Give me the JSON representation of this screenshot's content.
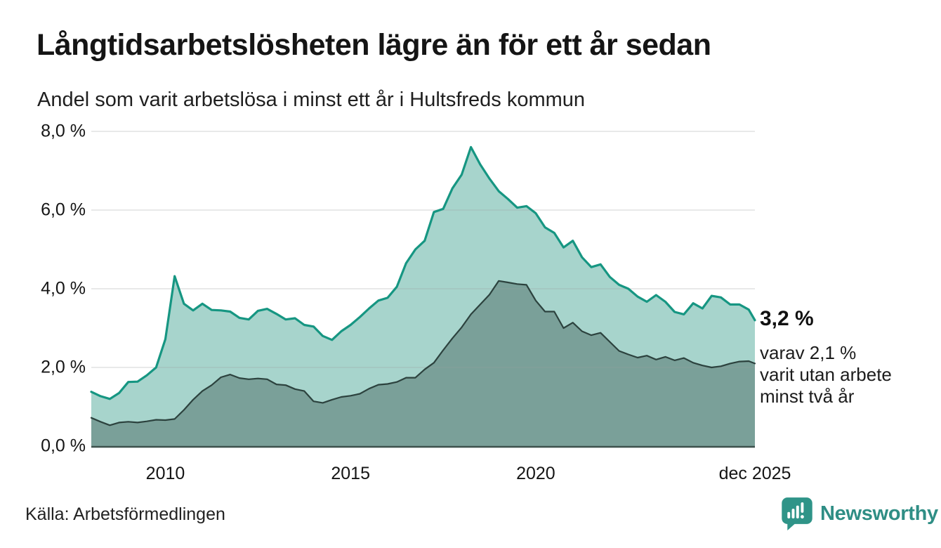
{
  "header": {
    "title": "Långtidsarbetslösheten lägre än för ett år sedan",
    "subtitle": "Andel som varit arbetslösa i minst ett år i Hultsfreds kommun"
  },
  "chart_data": {
    "type": "area",
    "title": "Långtidsarbetslösheten lägre än för ett år sedan",
    "subtitle": "Andel som varit arbetslösa i minst ett år i Hultsfreds kommun",
    "unit": "%",
    "ylim": [
      0,
      8
    ],
    "grid": true,
    "x_start": 2008.0,
    "x_step": 0.25,
    "x_end": 2025.917,
    "y_ticks": [
      {
        "label": "8,0 %",
        "value": 8
      },
      {
        "label": "6,0 %",
        "value": 6
      },
      {
        "label": "4,0 %",
        "value": 4
      },
      {
        "label": "2,0 %",
        "value": 2
      },
      {
        "label": "0,0 %",
        "value": 0
      }
    ],
    "x_ticks": [
      {
        "label": "2010",
        "t": 2010.0
      },
      {
        "label": "2015",
        "t": 2015.0
      },
      {
        "label": "2020",
        "t": 2020.0
      },
      {
        "label": "dec 2025",
        "t": 2025.917
      }
    ],
    "series": [
      {
        "name": "arbetslösa minst ett år",
        "line_color": "#169682",
        "fill_color": "#a7d4cc",
        "line_width": 3.2,
        "last_value": 3.2,
        "values": [
          1.38,
          1.27,
          1.2,
          1.35,
          1.63,
          1.64,
          1.8,
          2.0,
          2.72,
          4.32,
          3.62,
          3.45,
          3.62,
          3.46,
          3.45,
          3.42,
          3.26,
          3.22,
          3.44,
          3.49,
          3.36,
          3.22,
          3.25,
          3.08,
          3.04,
          2.8,
          2.7,
          2.92,
          3.08,
          3.28,
          3.5,
          3.7,
          3.77,
          4.05,
          4.65,
          5.0,
          5.22,
          5.95,
          6.03,
          6.55,
          6.9,
          7.6,
          7.16,
          6.8,
          6.48,
          6.28,
          6.06,
          6.1,
          5.92,
          5.56,
          5.42,
          5.05,
          5.22,
          4.8,
          4.55,
          4.62,
          4.3,
          4.1,
          4.0,
          3.8,
          3.67,
          3.84,
          3.67,
          3.41,
          3.35,
          3.63,
          3.5,
          3.82,
          3.78,
          3.6,
          3.6,
          3.47,
          3.2
        ]
      },
      {
        "name": "varav utan arbete minst två år",
        "line_color": "#2c423e",
        "fill_color": "#7aa099",
        "line_width": 2.2,
        "last_value": 2.1,
        "values": [
          0.72,
          0.62,
          0.53,
          0.6,
          0.62,
          0.6,
          0.63,
          0.67,
          0.66,
          0.69,
          0.92,
          1.18,
          1.4,
          1.55,
          1.75,
          1.82,
          1.73,
          1.7,
          1.72,
          1.7,
          1.57,
          1.55,
          1.45,
          1.4,
          1.14,
          1.1,
          1.18,
          1.25,
          1.28,
          1.33,
          1.46,
          1.56,
          1.58,
          1.63,
          1.74,
          1.74,
          1.95,
          2.12,
          2.44,
          2.74,
          3.02,
          3.35,
          3.6,
          3.85,
          4.2,
          4.16,
          4.12,
          4.1,
          3.7,
          3.42,
          3.42,
          3.0,
          3.14,
          2.92,
          2.82,
          2.88,
          2.65,
          2.42,
          2.33,
          2.25,
          2.3,
          2.2,
          2.27,
          2.18,
          2.24,
          2.12,
          2.05,
          2.0,
          2.03,
          2.1,
          2.15,
          2.16,
          2.1
        ]
      }
    ],
    "annotation": {
      "value": 3.2,
      "value_label": "3,2 %",
      "subset_value": 2.1,
      "detail_lines": [
        "varav 2,1 %",
        "varit utan arbete",
        "minst två år"
      ]
    },
    "colors": {
      "gridline": "#9aa0a0",
      "baseline": "#3d514c",
      "brand_teal": "#2f8e85"
    },
    "legend_position": "none"
  },
  "footer": {
    "source": "Källa: Arbetsförmedlingen",
    "brand": "Newsworthy"
  }
}
